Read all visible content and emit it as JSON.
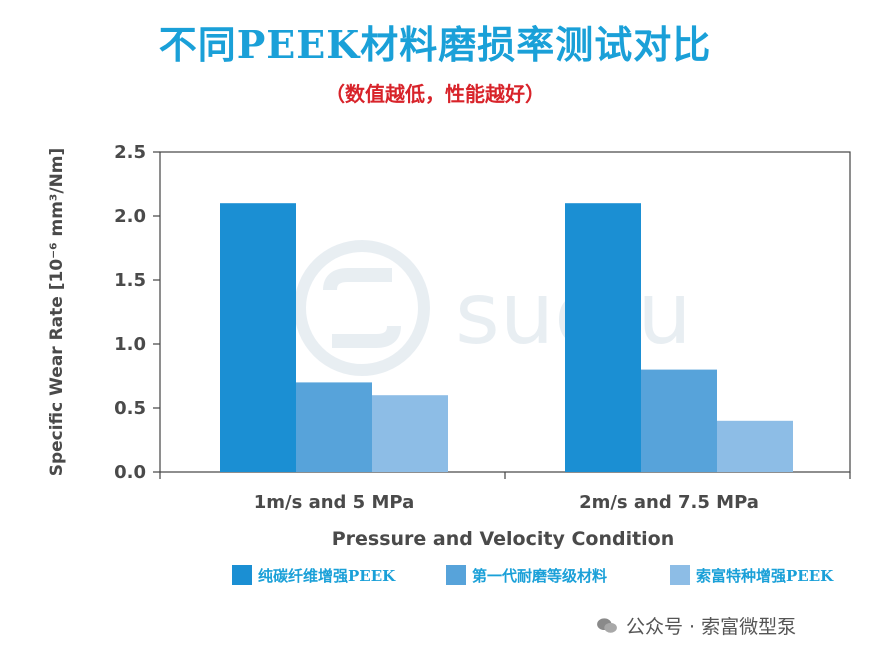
{
  "title": "不同PEEK材料磨损率测试对比",
  "subtitle": "（数值越低，性能越好）",
  "watermark": "suofu",
  "footer": {
    "text": "公众号 · 索富微型泵",
    "icon": "wechat-icon"
  },
  "colors": {
    "title": "#1aa0d8",
    "subtitle": "#d8232a",
    "legend_text": "#1aa0d8"
  },
  "chart_data": {
    "type": "bar",
    "xlabel": "Pressure and Velocity Condition",
    "ylabel": "Specific Wear Rate [10⁻⁶ mm³/Nm]",
    "categories": [
      "1m/s and 5 MPa",
      "2m/s and 7.5 MPa"
    ],
    "ylim": [
      0,
      2.5
    ],
    "yticks": [
      "0.0",
      "0.5",
      "1.0",
      "1.5",
      "2.0",
      "2.5"
    ],
    "grid": false,
    "legend_position": "bottom",
    "series": [
      {
        "name": "纯碳纤维增强PEEK",
        "values": [
          2.1,
          2.1
        ],
        "color": "#1b8fd3"
      },
      {
        "name": "第一代耐磨等级材料",
        "values": [
          0.7,
          0.8
        ],
        "color": "#57a3da"
      },
      {
        "name": "索富特种增强PEEK",
        "values": [
          0.6,
          0.4
        ],
        "color": "#8dbde6"
      }
    ]
  }
}
